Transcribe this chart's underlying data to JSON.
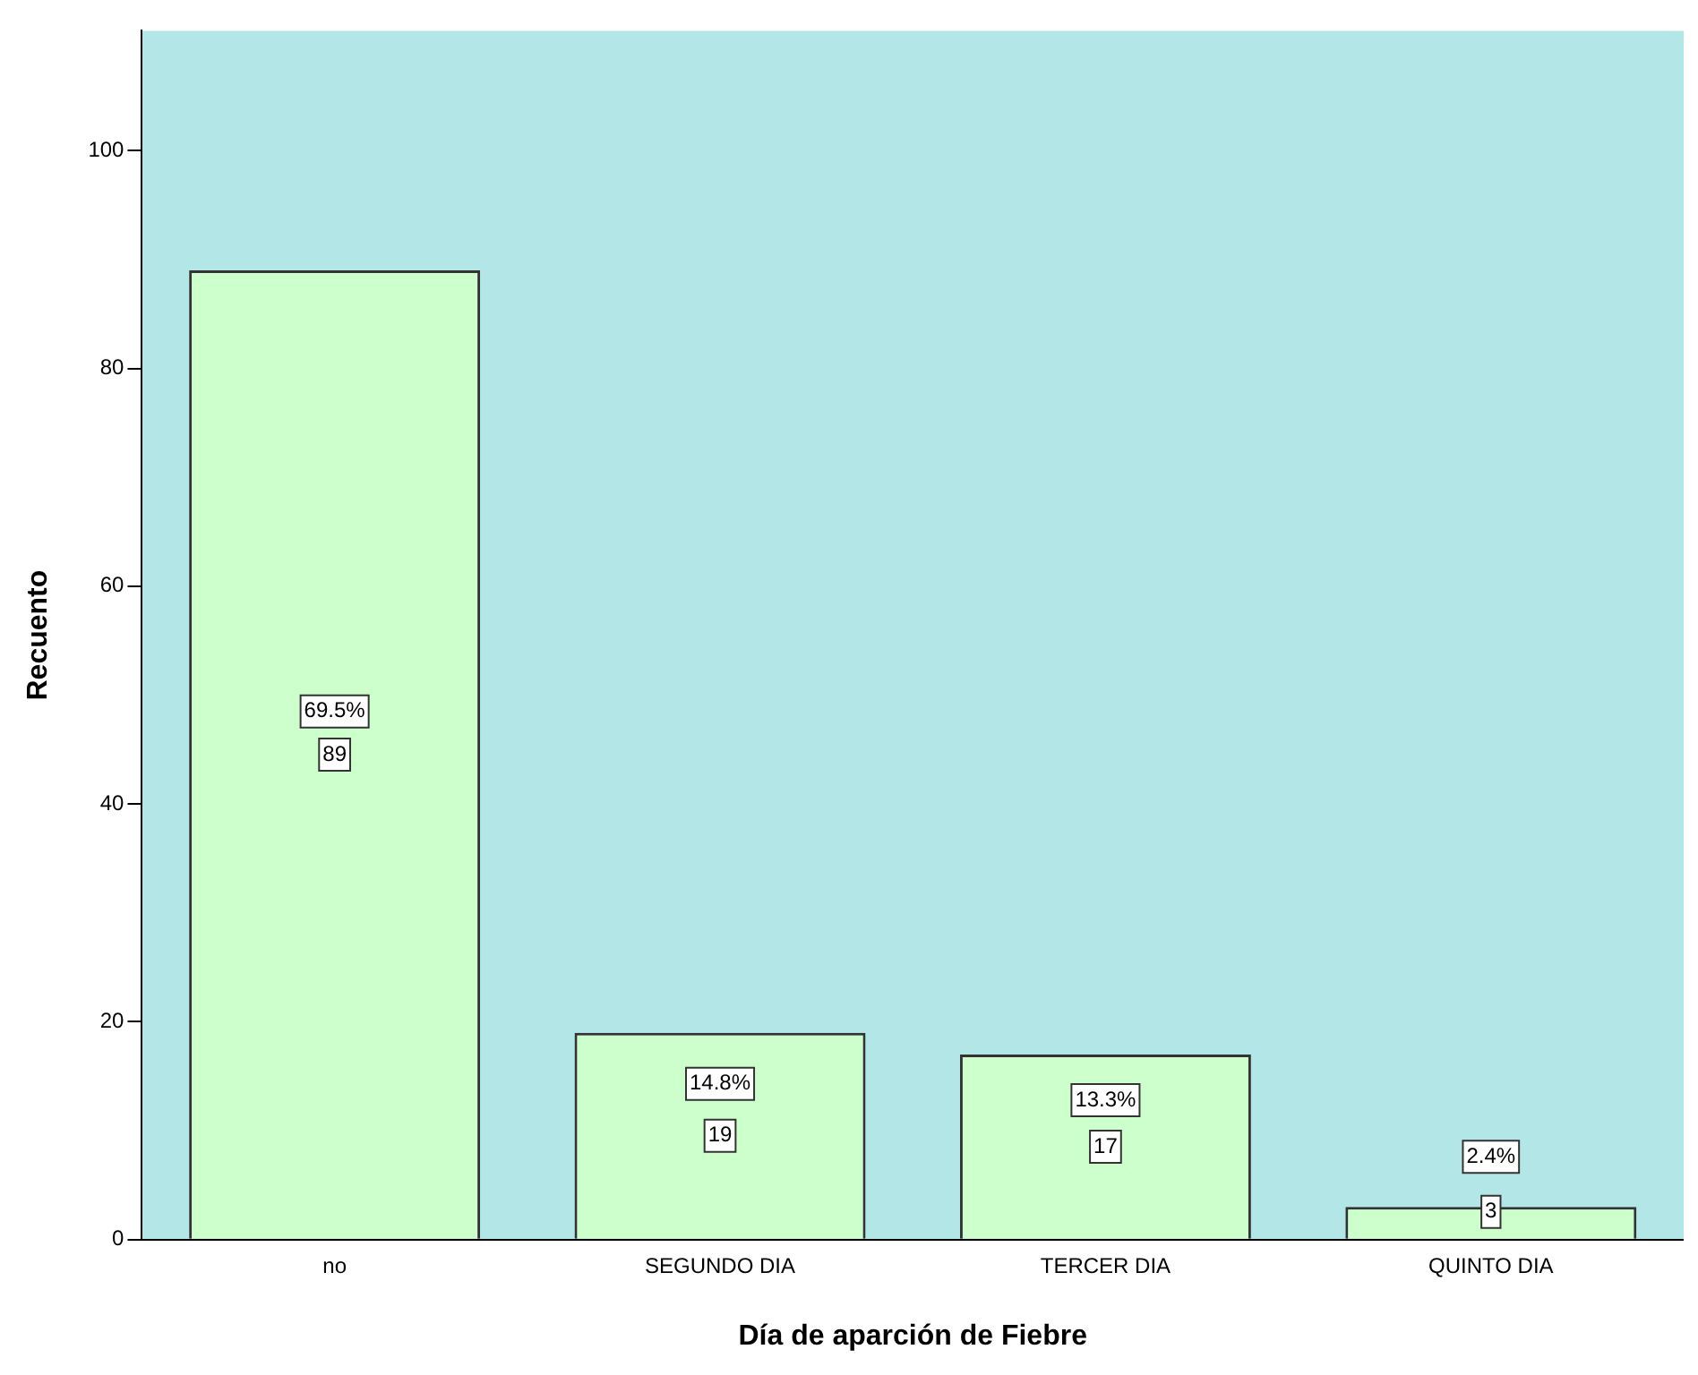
{
  "chart_data": {
    "type": "bar",
    "xlabel": "Día de aparción de Fiebre",
    "ylabel": "Recuento",
    "categories": [
      "no",
      "SEGUNDO DIA",
      "TERCER DIA",
      "QUINTO DIA"
    ],
    "values": [
      89,
      19,
      17,
      3
    ],
    "color": "#ccffcc",
    "data_labels": true,
    "annotations": [
      {
        "text": "69.5%",
        "x": "no",
        "y": 48.5
      },
      {
        "text": "14.8%",
        "x": "SEGUNDO DIA",
        "y": 14.3
      },
      {
        "text": "13.3%",
        "x": "TERCER DIA",
        "y": 12.8
      },
      {
        "text": "2.4%",
        "x": "QUINTO DIA",
        "y": 7.6
      }
    ],
    "ylim": [
      0,
      111
    ],
    "yticks": [
      0,
      20,
      40,
      60,
      80,
      100
    ]
  }
}
